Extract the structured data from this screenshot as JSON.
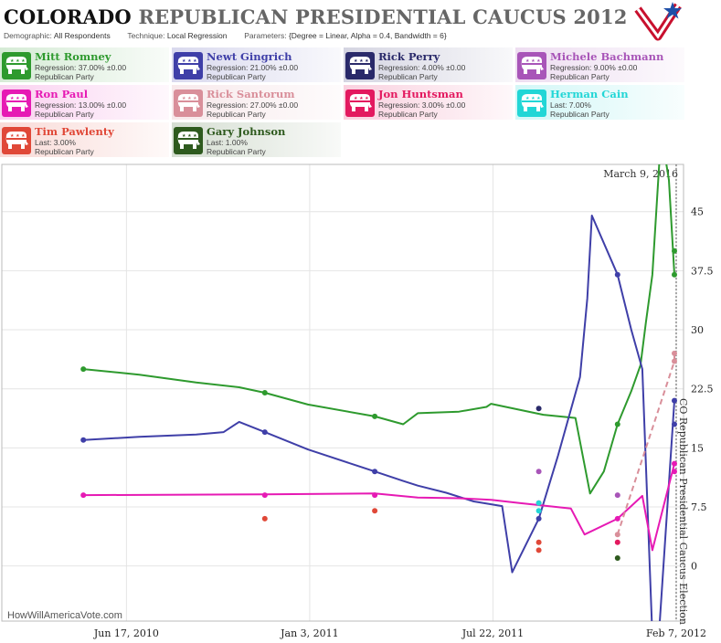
{
  "header": {
    "title_state": "COLORADO",
    "title_rest": "REPUBLICAN PRESIDENTIAL CAUCUS 2012",
    "demographic_label": "Demographic:",
    "demographic_value": "All Respondents",
    "technique_label": "Technique:",
    "technique_value": "Local Regression",
    "parameters_label": "Parameters:",
    "parameters_value": "{Degree = Linear, Alpha = 0.4, Bandwidth = 6}"
  },
  "logo": {
    "name": "flag-star-logo",
    "colors": [
      "#c8102e",
      "#1f4fa8",
      "#ffffff"
    ]
  },
  "legend": [
    {
      "name": "Mitt Romney",
      "detail": "Regression: 37.00% ±0.00",
      "party": "Republican Party",
      "color": "#2e9a2e",
      "icon": "elephant-icon"
    },
    {
      "name": "Newt Gingrich",
      "detail": "Regression: 21.00% ±0.00",
      "party": "Republican Party",
      "color": "#3f3fa8",
      "icon": "elephant-icon"
    },
    {
      "name": "Rick Perry",
      "detail": "Regression: 4.00% ±0.00",
      "party": "Republican Party",
      "color": "#2a2a6a",
      "icon": "elephant-icon"
    },
    {
      "name": "Michele Bachmann",
      "detail": "Regression: 9.00% ±0.00",
      "party": "Republican Party",
      "color": "#a855b8",
      "icon": "elephant-icon"
    },
    {
      "name": "Ron Paul",
      "detail": "Regression: 13.00% ±0.00",
      "party": "Republican Party",
      "color": "#e61ab4",
      "icon": "elephant-icon"
    },
    {
      "name": "Rick Santorum",
      "detail": "Regression: 27.00% ±0.00",
      "party": "Republican Party",
      "color": "#d98f9a",
      "icon": "elephant-icon"
    },
    {
      "name": "Jon Huntsman",
      "detail": "Regression: 3.00% ±0.00",
      "party": "Republican Party",
      "color": "#e3195f",
      "icon": "elephant-icon"
    },
    {
      "name": "Herman Cain",
      "detail": "Last: 7.00%",
      "party": "Republican Party",
      "color": "#22d6d6",
      "icon": "elephant-icon"
    },
    {
      "name": "Tim Pawlenty",
      "detail": "Last: 3.00%",
      "party": "Republican Party",
      "color": "#e04838",
      "icon": "elephant-icon"
    },
    {
      "name": "Gary Johnson",
      "detail": "Last: 1.00%",
      "party": "Republican Party",
      "color": "#2e5a1e",
      "icon": "elephant-icon"
    }
  ],
  "chart": {
    "credit": "HowWillAmericaVote.com",
    "current_date": "March 9, 2016",
    "election_label": "CO Republican Presidential Caucus Election",
    "x_ticks": [
      "Jun 17, 2010",
      "Jan 3, 2011",
      "Jul 22, 2011",
      "Feb 7, 2012"
    ],
    "y_ticks": [
      "0",
      "7.5",
      "15",
      "22.5",
      "30",
      "37.5",
      "45"
    ]
  },
  "chart_data": {
    "type": "line",
    "x_axis": "date",
    "ylim": [
      -7,
      51
    ],
    "xlim": [
      "2010-02-01",
      "2012-02-15"
    ],
    "grid": true,
    "series": [
      {
        "name": "Mitt Romney",
        "color": "#2e9a2e",
        "line": [
          [
            "2010-05-01",
            25
          ],
          [
            "2010-07-01",
            24.3
          ],
          [
            "2010-09-01",
            23.3
          ],
          [
            "2010-10-18",
            22.7
          ],
          [
            "2010-11-15",
            22
          ],
          [
            "2011-01-01",
            20.5
          ],
          [
            "2011-03-15",
            19
          ],
          [
            "2011-04-15",
            18
          ],
          [
            "2011-05-01",
            19.4
          ],
          [
            "2011-06-15",
            19.6
          ],
          [
            "2011-07-15",
            20.2
          ],
          [
            "2011-07-20",
            20.6
          ],
          [
            "2011-09-15",
            19.2
          ],
          [
            "2011-10-20",
            18.8
          ],
          [
            "2011-11-05",
            9.2
          ],
          [
            "2011-11-20",
            12
          ],
          [
            "2011-12-05",
            18
          ],
          [
            "2011-12-20",
            22.2
          ],
          [
            "2011-12-30",
            25.5
          ],
          [
            "2012-01-05",
            31
          ],
          [
            "2012-01-12",
            37
          ],
          [
            "2012-01-20",
            52
          ],
          [
            "2012-01-26",
            52
          ],
          [
            "2012-01-30",
            49
          ],
          [
            "2012-02-05",
            37
          ]
        ],
        "points": [
          [
            "2010-05-01",
            25
          ],
          [
            "2010-11-15",
            22
          ],
          [
            "2011-03-15",
            19
          ],
          [
            "2011-12-05",
            18
          ],
          [
            "2012-02-05",
            40
          ],
          [
            "2012-02-05",
            37
          ]
        ]
      },
      {
        "name": "Newt Gingrich",
        "color": "#3f3fa8",
        "line": [
          [
            "2010-05-01",
            16
          ],
          [
            "2010-07-01",
            16.4
          ],
          [
            "2010-09-01",
            16.7
          ],
          [
            "2010-10-01",
            17
          ],
          [
            "2010-10-18",
            18.3
          ],
          [
            "2010-11-15",
            17
          ],
          [
            "2011-01-01",
            14.8
          ],
          [
            "2011-03-15",
            12
          ],
          [
            "2011-04-15",
            10.8
          ],
          [
            "2011-05-01",
            10.2
          ],
          [
            "2011-06-01",
            9.3
          ],
          [
            "2011-07-01",
            8.2
          ],
          [
            "2011-08-01",
            7.6
          ],
          [
            "2011-08-12",
            -0.8
          ],
          [
            "2011-09-10",
            6
          ],
          [
            "2011-10-01",
            14
          ],
          [
            "2011-10-25",
            24
          ],
          [
            "2011-11-02",
            34
          ],
          [
            "2011-11-07",
            44.5
          ],
          [
            "2011-12-05",
            37
          ],
          [
            "2011-12-20",
            30
          ],
          [
            "2012-01-01",
            25
          ],
          [
            "2012-01-12",
            -9
          ],
          [
            "2012-01-19",
            -9
          ],
          [
            "2012-02-05",
            21
          ]
        ],
        "points": [
          [
            "2010-05-01",
            16
          ],
          [
            "2010-11-15",
            17
          ],
          [
            "2011-03-15",
            12
          ],
          [
            "2011-09-10",
            6
          ],
          [
            "2011-12-05",
            37
          ],
          [
            "2012-02-05",
            18
          ],
          [
            "2012-02-05",
            21
          ]
        ]
      },
      {
        "name": "Ron Paul",
        "color": "#e61ab4",
        "line": [
          [
            "2010-05-01",
            9
          ],
          [
            "2010-11-15",
            9.1
          ],
          [
            "2011-03-15",
            9.2
          ],
          [
            "2011-05-01",
            8.7
          ],
          [
            "2011-06-15",
            8.6
          ],
          [
            "2011-07-20",
            8.4
          ],
          [
            "2011-08-20",
            8
          ],
          [
            "2011-10-15",
            7.3
          ],
          [
            "2011-10-30",
            4
          ],
          [
            "2011-12-05",
            6
          ],
          [
            "2012-01-01",
            8.9
          ],
          [
            "2012-01-12",
            2
          ],
          [
            "2012-02-05",
            13
          ]
        ],
        "points": [
          [
            "2010-05-01",
            9
          ],
          [
            "2010-11-15",
            9
          ],
          [
            "2011-03-15",
            9
          ],
          [
            "2011-09-10",
            8
          ],
          [
            "2011-12-05",
            6
          ],
          [
            "2012-02-05",
            13
          ],
          [
            "2012-02-05",
            12
          ]
        ]
      },
      {
        "name": "Rick Santorum",
        "color": "#d98f9a",
        "dashed": true,
        "line": [
          [
            "2011-12-05",
            4
          ],
          [
            "2012-02-05",
            26
          ],
          [
            "2012-02-05",
            27
          ]
        ],
        "points": [
          [
            "2011-12-05",
            4
          ],
          [
            "2012-02-05",
            26
          ],
          [
            "2012-02-05",
            27
          ]
        ]
      },
      {
        "name": "Rick Perry",
        "color": "#2a2a6a",
        "points": [
          [
            "2011-09-10",
            20
          ]
        ]
      },
      {
        "name": "Michele Bachmann",
        "color": "#a855b8",
        "points": [
          [
            "2011-09-10",
            12
          ],
          [
            "2011-12-05",
            9
          ]
        ]
      },
      {
        "name": "Jon Huntsman",
        "color": "#e3195f",
        "points": [
          [
            "2011-12-05",
            3
          ]
        ]
      },
      {
        "name": "Herman Cain",
        "color": "#22d6d6",
        "points": [
          [
            "2011-09-10",
            7
          ],
          [
            "2011-09-10",
            8
          ]
        ]
      },
      {
        "name": "Tim Pawlenty",
        "color": "#e04838",
        "points": [
          [
            "2010-11-15",
            6
          ],
          [
            "2011-03-15",
            7
          ],
          [
            "2011-09-10",
            3
          ],
          [
            "2011-09-10",
            2
          ]
        ]
      },
      {
        "name": "Gary Johnson",
        "color": "#2e5a1e",
        "points": [
          [
            "2011-12-05",
            1
          ]
        ]
      }
    ]
  }
}
